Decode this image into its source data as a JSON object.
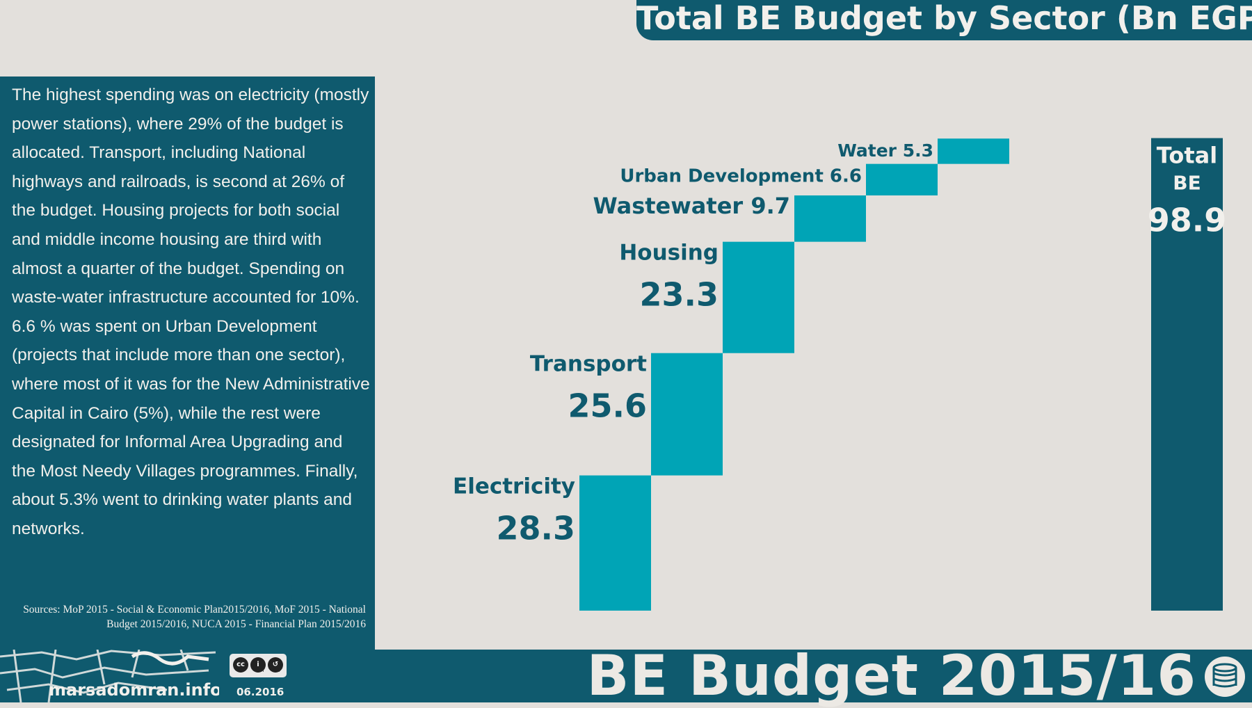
{
  "header": {
    "title": "Total BE Budget by Sector (Bn EGP)"
  },
  "panel": {
    "text": "The highest spending was on electricity (mostly power stations), where 29% of the budget is allocated. Transport, including National highways and railroads, is second at 26% of the budget. Housing projects for both social and middle income housing are third with almost a quarter of the budget. Spending on waste-water infrastructure accounted for 10%. 6.6 % was spent on Urban Development (projects that include more than one sector), where most of it was for the New Administrative Capital in Cairo (5%), while the rest were designated for Informal Area Upgrading and the Most Needy Villages programmes. Finally, about 5.3% went to drinking water plants and networks.",
    "sources": "Sources: MoP 2015 - Social & Economic Plan2015/2016, MoF 2015 - National Budget 2015/2016, NUCA 2015 - Financial Plan 2015/2016"
  },
  "footer": {
    "title": "BE Budget 2015/16",
    "logo_text": "marsadomran.info",
    "license_cc": "cc",
    "license_by": "BY",
    "license_sa": "SA",
    "date": "06.2016"
  },
  "colors": {
    "bar": "#00a4b6",
    "dark": "#0f5a6e",
    "background": "#e3e0dc"
  },
  "chart_data": {
    "type": "bar",
    "subtype": "waterfall",
    "categories": [
      "Electricity",
      "Transport",
      "Housing",
      "Wastewater",
      "Urban Development",
      "Water"
    ],
    "values": [
      28.3,
      25.6,
      23.3,
      9.7,
      6.6,
      5.3
    ],
    "total": {
      "label_line1": "Total",
      "label_line2": "BE",
      "value": 98.9
    },
    "title": "Total BE Budget by Sector (Bn EGP)",
    "xlabel": "",
    "ylabel": "",
    "ylim": [
      0,
      98.9
    ],
    "grid": false
  }
}
